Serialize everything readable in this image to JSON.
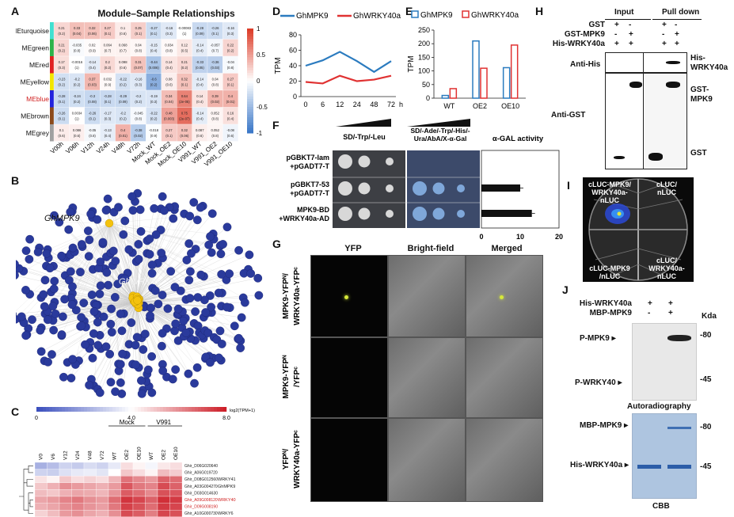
{
  "panel_labels": [
    "A",
    "B",
    "C",
    "D",
    "E",
    "F",
    "G",
    "H",
    "I",
    "J"
  ],
  "panelA": {
    "title": "Module–Sample Relationships",
    "modules": [
      "MEturquoise",
      "MEgreen",
      "MEred",
      "MEyellow",
      "MEblue",
      "MEbrown",
      "MEgrey"
    ],
    "module_colors": [
      "#40e0d0",
      "#2db34a",
      "#e02020",
      "#f2e600",
      "#2222dd",
      "#8b4a1c",
      "#a0a0a0"
    ],
    "highlight_module": "MEblue",
    "samples": [
      "V00h",
      "V06h",
      "V12h",
      "V24h",
      "V48h",
      "V72h",
      "Mock_WT",
      "Mock_OE2",
      "Mock_OE10",
      "V991_WT",
      "V991_OE2",
      "V991_OE10"
    ],
    "corr": [
      [
        0.21,
        0.33,
        0.32,
        0.27,
        0.1,
        0.25,
        -0.27,
        -0.16,
        -0.00083,
        -0.28,
        -0.26,
        -0.16
      ],
      [
        0.21,
        -0.035,
        0.02,
        0.064,
        0.068,
        0.04,
        -0.15,
        0.034,
        0.12,
        -0.14,
        -0.057,
        0.22
      ],
      [
        0.17,
        -0.0016,
        -0.14,
        0.2,
        0.098,
        0.31,
        -0.44,
        0.14,
        0.21,
        -0.33,
        -0.36,
        -0.04
      ],
      [
        -0.23,
        -0.2,
        0.37,
        0.032,
        -0.22,
        -0.16,
        -0.6,
        0.08,
        0.32,
        -0.14,
        0.04,
        0.27
      ],
      [
        -0.28,
        -0.24,
        -0.3,
        -0.28,
        -0.29,
        -0.2,
        -0.19,
        0.34,
        0.64,
        0.14,
        0.39,
        0.4
      ],
      [
        -0.26,
        0.0034,
        -0.26,
        -0.17,
        -0.2,
        -0.045,
        -0.22,
        0.48,
        0.75,
        -0.14,
        0.052,
        0.16
      ],
      [
        0.1,
        0.086,
        -0.05,
        -0.13,
        0.4,
        -0.38,
        -0.018,
        0.27,
        0.32,
        0.087,
        0.052,
        -0.08
      ]
    ],
    "pvals": [
      [
        "(0.2)",
        "(0.04)",
        "(0.06)",
        "(0.1)",
        "(0.6)",
        "(0.1)",
        "(0.1)",
        "(0.3)",
        "(1)",
        "(0.09)",
        "(0.1)",
        "(0.3)"
      ],
      [
        "(0.2)",
        "(0.8)",
        "(0.9)",
        "(0.7)",
        "(0.7)",
        "(0.8)",
        "(0.4)",
        "(0.8)",
        "(0.5)",
        "(0.4)",
        "(0.7)",
        "(0.2)"
      ],
      [
        "(0.3)",
        "(1)",
        "(0.4)",
        "(0.2)",
        "(0.6)",
        "(0.07)",
        "(0.006)",
        "(0.4)",
        "(0.2)",
        "(0.05)",
        "(0.03)",
        "(0.8)"
      ],
      [
        "(0.2)",
        "(0.2)",
        "(0.03)",
        "(0.9)",
        "(0.2)",
        "(0.3)",
        "(0.2)",
        "(0.6)",
        "(0.1)",
        "(0.4)",
        "(0.8)",
        "(0.1)"
      ],
      [
        "(0.1)",
        "(0.2)",
        "(0.08)",
        "(0.1)",
        "(0.09)",
        "(0.2)",
        "(0.3)",
        "(0.04)",
        "(2e-05)",
        "(0.4)",
        "(0.02)",
        "(0.01)"
      ],
      [
        "(0.1)",
        "(1)",
        "(0.1)",
        "(0.3)",
        "(0.2)",
        "(0.8)",
        "(0.2)",
        "(0.003)",
        "(2e-07)",
        "(0.4)",
        "(0.8)",
        "(0.4)"
      ],
      [
        "(0.6)",
        "(0.6)",
        "(0.8)",
        "(0.4)",
        "(0.01)",
        "(0.02)",
        "(0.9)",
        "(0.1)",
        "(0.06)",
        "(0.6)",
        "(0.8)",
        "(0.6)"
      ]
    ],
    "colorbar_ticks": [
      "1",
      "0.5",
      "0",
      "-0.5",
      "-1"
    ]
  },
  "panelB": {
    "label1": "GhMPK9",
    "label2": "GhWRKYs"
  },
  "panelC": {
    "colorbar_ticks": [
      "0",
      "4.0",
      "8.0"
    ],
    "colorbar_unit": "log2(TPM+1)",
    "group_mock": "Mock",
    "group_v991": "V991",
    "columns": [
      "V0",
      "V6",
      "V12",
      "V24",
      "V48",
      "V72",
      "WT",
      "OE2",
      "OE10",
      "WT",
      "OE2",
      "OE10"
    ],
    "rows": [
      {
        "id": "Ghir_D06G020640",
        "name": "",
        "red": false
      },
      {
        "id": "Ghir_A06G019720",
        "name": "",
        "red": false
      },
      {
        "id": "Ghir_D08G012560",
        "name": "WRKY41",
        "red": false
      },
      {
        "id": "Ghir_A03G004270",
        "name": "GhMPK9",
        "red": false
      },
      {
        "id": "Ghir_D03G014630",
        "name": "",
        "red": false
      },
      {
        "id": "Ghir_A09G008120",
        "name": "WRKY40",
        "red": true
      },
      {
        "id": "Ghir_D09G008190",
        "name": "",
        "red": true
      },
      {
        "id": "Ghir_A10G000730",
        "name": "WRKY6",
        "red": false
      }
    ],
    "values": [
      [
        2.2,
        2.5,
        3.0,
        2.8,
        3.2,
        3.0,
        3.5,
        4.6,
        4.2,
        3.8,
        4.4,
        4.6
      ],
      [
        3.0,
        2.9,
        3.3,
        3.5,
        3.6,
        3.4,
        4.0,
        5.0,
        4.6,
        4.2,
        5.2,
        4.9
      ],
      [
        4.5,
        4.2,
        5.0,
        4.6,
        4.8,
        4.6,
        5.3,
        6.5,
        6.1,
        5.8,
        6.8,
        6.6
      ],
      [
        5.0,
        5.4,
        6.0,
        5.8,
        5.6,
        5.4,
        5.8,
        7.0,
        6.4,
        6.2,
        7.2,
        6.8
      ],
      [
        5.2,
        5.0,
        5.4,
        5.6,
        5.5,
        5.3,
        5.9,
        6.9,
        6.6,
        6.1,
        7.1,
        7.0
      ],
      [
        5.6,
        5.8,
        6.2,
        6.4,
        6.0,
        5.8,
        6.6,
        7.6,
        7.3,
        6.8,
        7.7,
        7.5
      ],
      [
        5.4,
        5.6,
        6.0,
        6.2,
        5.9,
        5.7,
        6.4,
        7.4,
        7.1,
        6.6,
        7.5,
        7.3
      ],
      [
        4.8,
        5.2,
        5.8,
        6.0,
        5.6,
        5.4,
        6.0,
        7.2,
        6.9,
        6.3,
        7.3,
        7.1
      ]
    ]
  },
  "chart_data": [
    {
      "panel": "D",
      "type": "line",
      "x": [
        "0",
        "6",
        "12",
        "24",
        "48",
        "72"
      ],
      "xunit": "h",
      "ylabel": "TPM",
      "ylim": [
        0,
        80
      ],
      "yticks": [
        0,
        20,
        40,
        60,
        80
      ],
      "series": [
        {
          "name": "GhMPK9",
          "color": "#2b7bbf",
          "values": [
            40,
            47,
            58,
            46,
            32,
            46
          ]
        },
        {
          "name": "GhWRKY40a",
          "color": "#e03232",
          "values": [
            19,
            17,
            27,
            20,
            22,
            27
          ]
        }
      ]
    },
    {
      "panel": "E",
      "type": "bar",
      "categories": [
        "WT",
        "OE2",
        "OE10"
      ],
      "ylabel": "TPM",
      "ylim": [
        0,
        250
      ],
      "yticks": [
        0,
        50,
        100,
        150,
        200,
        250
      ],
      "series": [
        {
          "name": "GhMPK9",
          "color": "#2b7bbf",
          "values": [
            10,
            210,
            112
          ]
        },
        {
          "name": "GhWRKY40a",
          "color": "#e03232",
          "values": [
            35,
            110,
            195
          ]
        }
      ]
    },
    {
      "panel": "F",
      "type": "bar",
      "title": "α-GAL activity",
      "categories": [
        "pGBKT7-lam +pGADT7-T",
        "pGBKT7-53 +pGADT7-T",
        "MPK9-BD +WRKY40a-AD"
      ],
      "values": [
        0,
        10,
        13
      ],
      "xlim": [
        0,
        20
      ],
      "xticks": [
        0,
        10,
        20
      ]
    }
  ],
  "panelF": {
    "media1": "SD/-Trp/-Leu",
    "media2": "SD/-Ade/-Trp/-His/-Ura/AbA/X-α-Gal",
    "rows": [
      {
        "l1": "pGBKT7-lam",
        "l2": "+pGADT7-T"
      },
      {
        "l1": "pGBKT7-53",
        "l2": "+pGADT7-T"
      },
      {
        "l1": "MPK9-BD",
        "l2": "+WRKY40a-AD"
      }
    ]
  },
  "panelG": {
    "columns": [
      "YFP",
      "Bright-field",
      "Merged"
    ],
    "rows": [
      [
        "MPK9-YFPᴺ/",
        "WRKY40a-YFPᶜ"
      ],
      [
        "MPK9-YFPᴺ",
        "/YFPᶜ"
      ],
      [
        "YFPᴺ/",
        "WRKY40a-YFPᶜ"
      ]
    ]
  },
  "panelH": {
    "header_input": "Input",
    "header_pulldown": "Pull down",
    "lanes": [
      {
        "name": "GST",
        "marks": [
          "+",
          "-",
          "+",
          "-"
        ]
      },
      {
        "name": "GST-MPK9",
        "marks": [
          "-",
          "+",
          "-",
          "+"
        ]
      },
      {
        "name": "His-WRKY40a",
        "marks": [
          "+",
          "+",
          "+",
          "+"
        ]
      }
    ],
    "anti_his": "Anti-His",
    "anti_gst": "Anti-GST",
    "band_his": [
      "His-",
      "WRKY40a"
    ],
    "band_gstmpk9": [
      "GST-",
      "MPK9"
    ],
    "band_gst": "GST"
  },
  "panelI": {
    "q1": [
      "cLUC-MPK9/",
      "WRKY40a-",
      "nLUC"
    ],
    "q2": [
      "cLUC/",
      "nLUC"
    ],
    "q3": [
      "cLUC-MPK9",
      "/nLUC"
    ],
    "q4": [
      "cLUC/",
      "WRKY40a-",
      "nLUC"
    ]
  },
  "panelJ": {
    "lanes": [
      {
        "name": "His-WRKY40a",
        "marks": [
          "+",
          "+"
        ]
      },
      {
        "name": "MBP-MPK9",
        "marks": [
          "-",
          "+"
        ]
      }
    ],
    "kda": "Kda",
    "p_mpk9": "P-MPK9",
    "p_wrky40": "P-WRKY40",
    "mw80": "-80",
    "mw45": "-45",
    "autorad": "Autoradiography",
    "mbp_mpk9": "MBP-MPK9",
    "his_wrky40a": "His-WRKY40a",
    "cbb": "CBB"
  }
}
